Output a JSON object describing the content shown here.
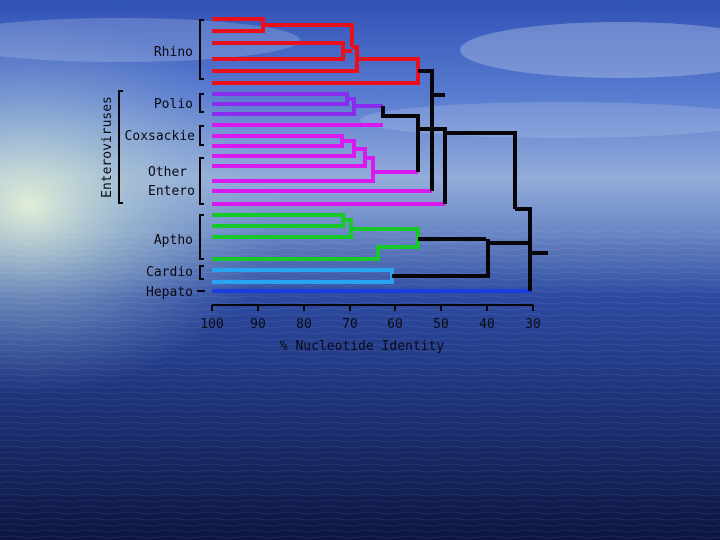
{
  "group_labels": {
    "rhino": "Rhino",
    "polio": "Polio",
    "coxsackie": "Coxsackie",
    "other_1": "Other",
    "other_2": "Entero",
    "aptho": "Aptho",
    "cardio": "Cardio",
    "hepato": "Hepato",
    "enteroviruses": "Enteroviruses"
  },
  "axis": {
    "ticks": [
      "100",
      "90",
      "80",
      "70",
      "60",
      "50",
      "40",
      "30"
    ],
    "label": "% Nucleotide Identity"
  },
  "colors": {
    "rhino": "#e8101c",
    "polio": "#8a2cf0",
    "coxsackie": "#d81aef",
    "aptho": "#18c82a",
    "cardio": "#28a4f2",
    "hepato": "#1d3ce0",
    "backbone": "#05050a"
  }
}
